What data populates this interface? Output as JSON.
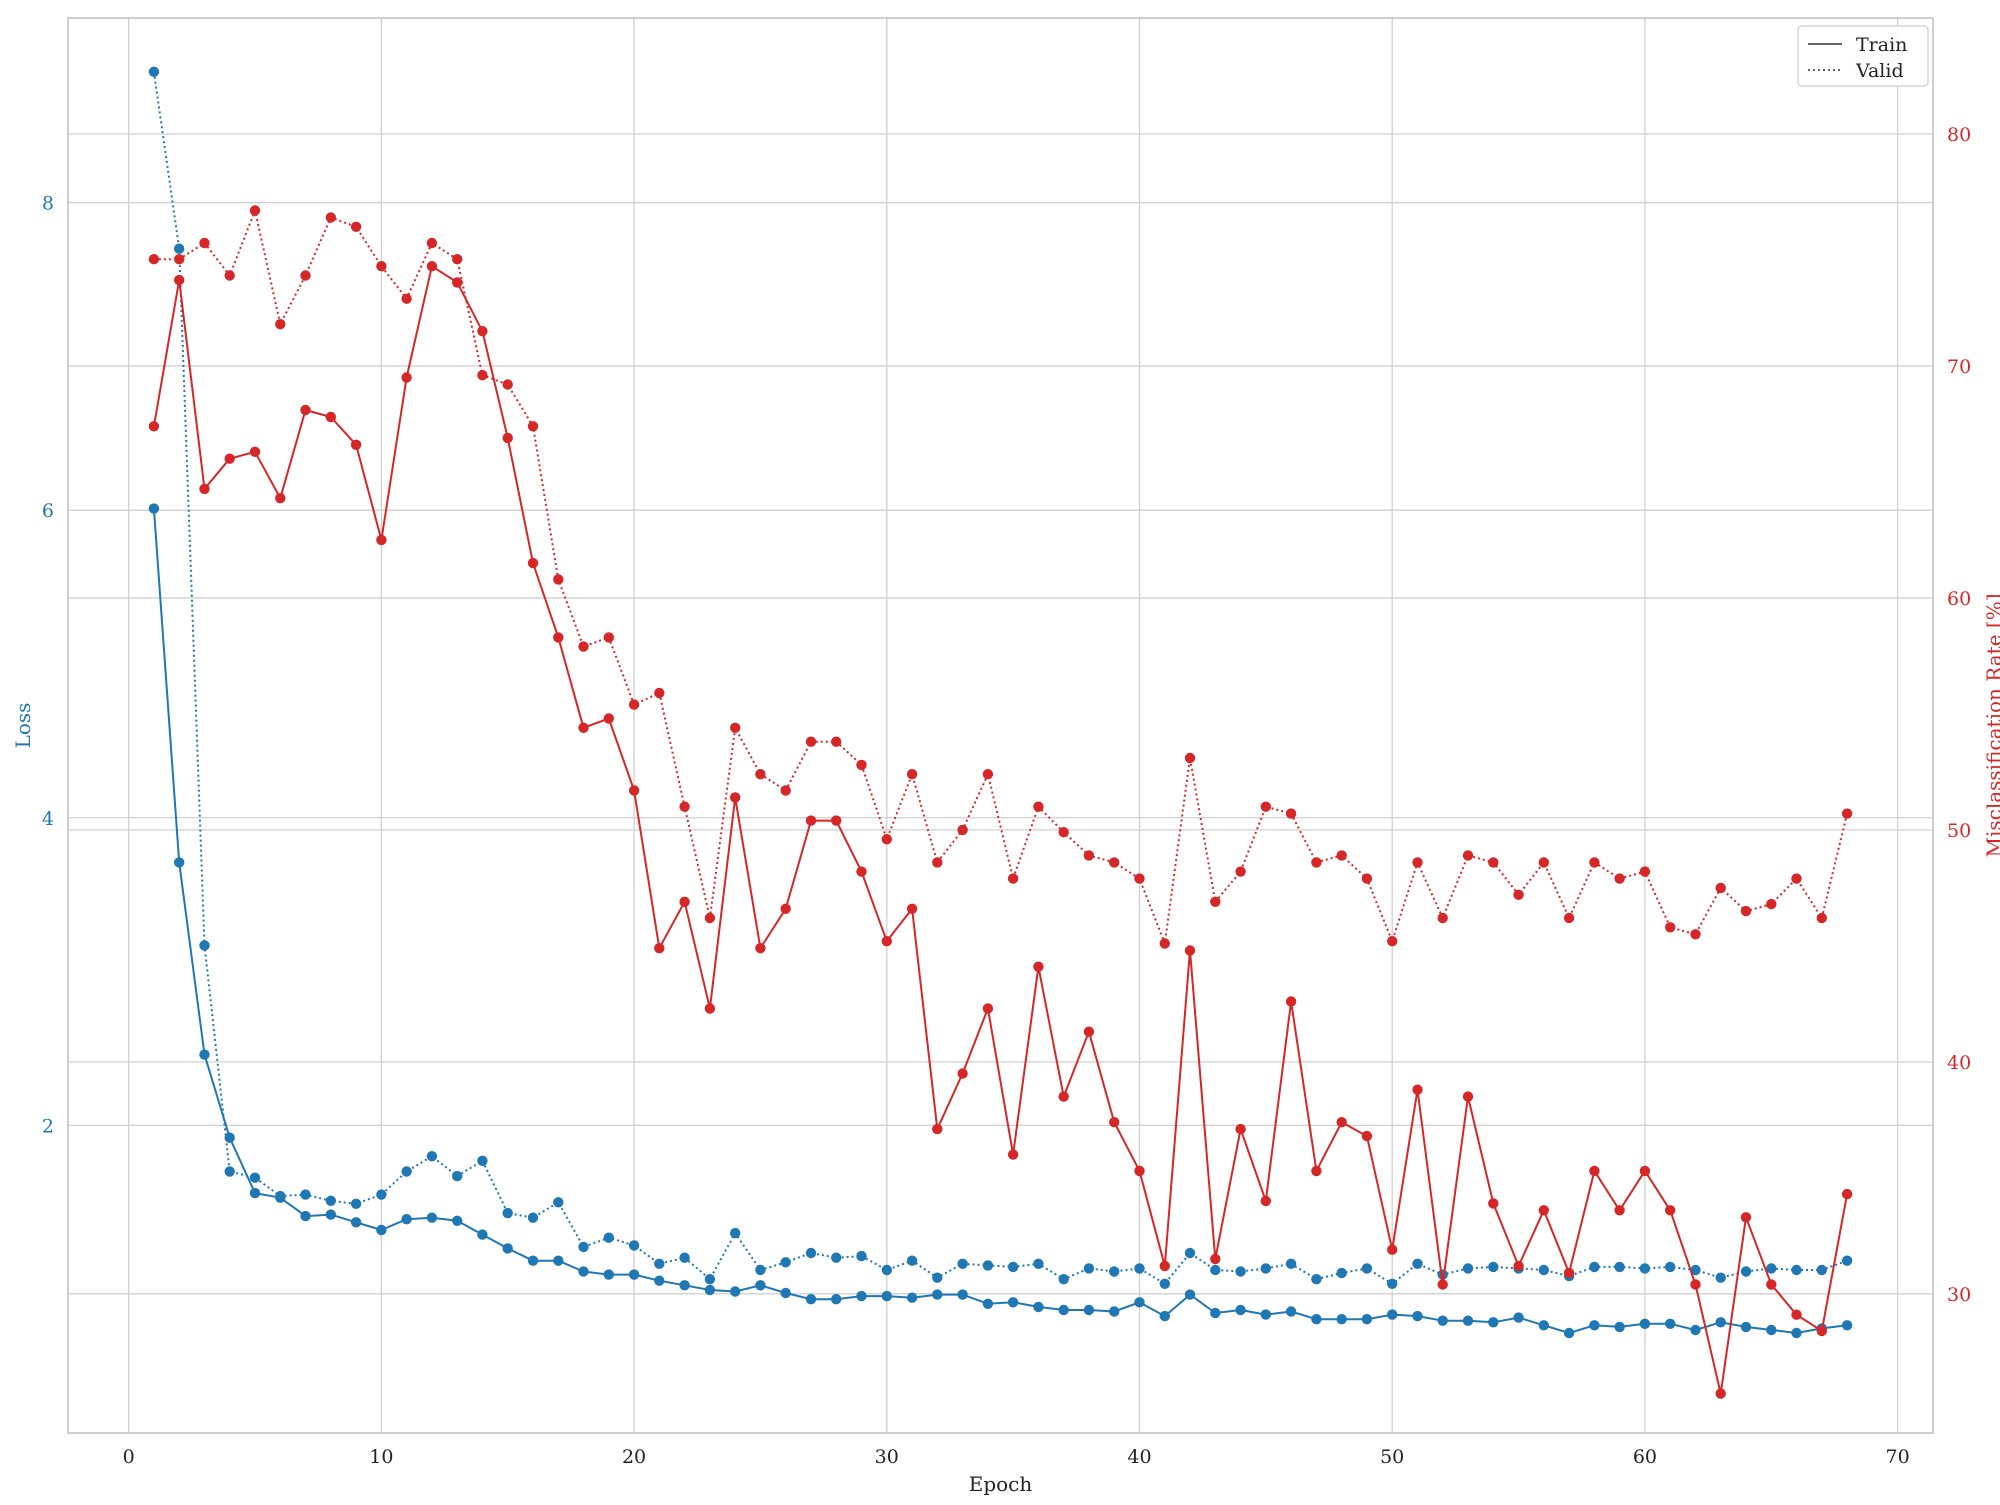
{
  "chart_data": {
    "type": "line",
    "xlabel": "Epoch",
    "ylabel_left": "Loss",
    "ylabel_right": "Misclassification Rate [%]",
    "xlim": [
      -2.4,
      71.4
    ],
    "ylim_left": [
      0.0,
      9.2
    ],
    "ylim_right": [
      24.0,
      85.0
    ],
    "xticks": [
      0,
      10,
      20,
      30,
      40,
      50,
      60,
      70
    ],
    "xtick_labels": [
      "0",
      "10",
      "20",
      "30",
      "40",
      "50",
      "60",
      "70"
    ],
    "yticks_left": [
      2,
      4,
      6,
      8
    ],
    "ytick_labels_left": [
      "2",
      "4",
      "6",
      "8"
    ],
    "yticks_right": [
      30,
      40,
      50,
      60,
      70,
      80
    ],
    "ytick_labels_right": [
      "30",
      "40",
      "50",
      "60",
      "70",
      "80"
    ],
    "grid": true,
    "legend": {
      "position": "top-right",
      "entries": [
        {
          "label": "Train",
          "style": "solid"
        },
        {
          "label": "Valid",
          "style": "dotted"
        }
      ]
    },
    "colors": {
      "loss": "#1f77b4",
      "error": "#d62728"
    },
    "x": [
      1,
      2,
      3,
      4,
      5,
      6,
      7,
      8,
      9,
      10,
      11,
      12,
      13,
      14,
      15,
      16,
      17,
      18,
      19,
      20,
      21,
      22,
      23,
      24,
      25,
      26,
      27,
      28,
      29,
      30,
      31,
      32,
      33,
      34,
      35,
      36,
      37,
      38,
      39,
      40,
      41,
      42,
      43,
      44,
      45,
      46,
      47,
      48,
      49,
      50,
      51,
      52,
      53,
      54,
      55,
      56,
      57,
      58,
      59,
      60,
      61,
      62,
      63,
      64,
      65,
      66,
      67,
      68
    ],
    "series": [
      {
        "name": "Train",
        "metric": "loss",
        "axis": "left",
        "style": "solid",
        "values": [
          6.01,
          3.71,
          2.46,
          1.92,
          1.56,
          1.53,
          1.41,
          1.42,
          1.37,
          1.32,
          1.39,
          1.4,
          1.38,
          1.29,
          1.2,
          1.12,
          1.12,
          1.05,
          1.03,
          1.03,
          0.99,
          0.96,
          0.93,
          0.92,
          0.96,
          0.91,
          0.87,
          0.87,
          0.89,
          0.89,
          0.88,
          0.9,
          0.9,
          0.84,
          0.85,
          0.82,
          0.8,
          0.8,
          0.79,
          0.85,
          0.76,
          0.9,
          0.78,
          0.8,
          0.77,
          0.79,
          0.74,
          0.74,
          0.74,
          0.77,
          0.76,
          0.73,
          0.73,
          0.72,
          0.75,
          0.7,
          0.65,
          0.7,
          0.69,
          0.71,
          0.71,
          0.67,
          0.72,
          0.69,
          0.67,
          0.65,
          0.68,
          0.7
        ]
      },
      {
        "name": "Valid",
        "metric": "loss",
        "axis": "left",
        "style": "dotted",
        "values": [
          8.85,
          7.7,
          3.17,
          1.7,
          1.66,
          1.54,
          1.55,
          1.51,
          1.49,
          1.55,
          1.7,
          1.8,
          1.67,
          1.77,
          1.43,
          1.4,
          1.5,
          1.21,
          1.27,
          1.22,
          1.1,
          1.14,
          1.0,
          1.3,
          1.06,
          1.11,
          1.17,
          1.14,
          1.15,
          1.06,
          1.12,
          1.01,
          1.1,
          1.09,
          1.08,
          1.1,
          1.0,
          1.07,
          1.05,
          1.07,
          0.97,
          1.17,
          1.06,
          1.05,
          1.07,
          1.1,
          1.0,
          1.04,
          1.07,
          0.97,
          1.1,
          1.03,
          1.07,
          1.08,
          1.07,
          1.06,
          1.02,
          1.08,
          1.08,
          1.07,
          1.08,
          1.06,
          1.01,
          1.05,
          1.07,
          1.06,
          1.06,
          1.12
        ]
      },
      {
        "name": "Train",
        "metric": "error",
        "axis": "right",
        "style": "solid",
        "values": [
          67.4,
          73.7,
          64.7,
          66.0,
          66.3,
          64.3,
          68.1,
          67.8,
          66.6,
          62.5,
          69.5,
          74.3,
          73.6,
          71.5,
          66.9,
          61.5,
          58.3,
          54.4,
          54.8,
          51.7,
          44.9,
          46.9,
          42.3,
          51.4,
          44.9,
          46.6,
          50.4,
          50.4,
          48.2,
          45.2,
          46.6,
          37.1,
          39.5,
          42.3,
          36.0,
          44.1,
          38.5,
          41.3,
          37.4,
          35.3,
          31.2,
          44.8,
          31.5,
          37.1,
          34.0,
          42.6,
          35.3,
          37.4,
          36.8,
          31.9,
          38.8,
          30.4,
          38.5,
          33.9,
          31.2,
          33.6,
          30.9,
          35.3,
          33.6,
          35.3,
          33.6,
          30.4,
          25.7,
          33.3,
          30.4,
          29.1,
          28.4,
          34.3
        ]
      },
      {
        "name": "Valid",
        "metric": "error",
        "axis": "right",
        "style": "dotted",
        "values": [
          74.6,
          74.6,
          75.3,
          73.9,
          76.7,
          71.8,
          73.9,
          76.4,
          76.0,
          74.3,
          72.9,
          75.3,
          74.6,
          69.6,
          69.2,
          67.4,
          60.8,
          57.9,
          58.3,
          55.4,
          55.9,
          51.0,
          46.2,
          54.4,
          52.4,
          51.7,
          53.8,
          53.8,
          52.8,
          49.6,
          52.4,
          48.6,
          50.0,
          52.4,
          47.9,
          51.0,
          49.9,
          48.9,
          48.6,
          47.9,
          45.1,
          53.1,
          46.9,
          48.2,
          51.0,
          50.7,
          48.6,
          48.9,
          47.9,
          45.2,
          48.6,
          46.2,
          48.9,
          48.6,
          47.2,
          48.6,
          46.2,
          48.6,
          47.9,
          48.2,
          45.8,
          45.5,
          47.5,
          46.5,
          46.8,
          47.9,
          46.2,
          50.7
        ]
      }
    ]
  }
}
